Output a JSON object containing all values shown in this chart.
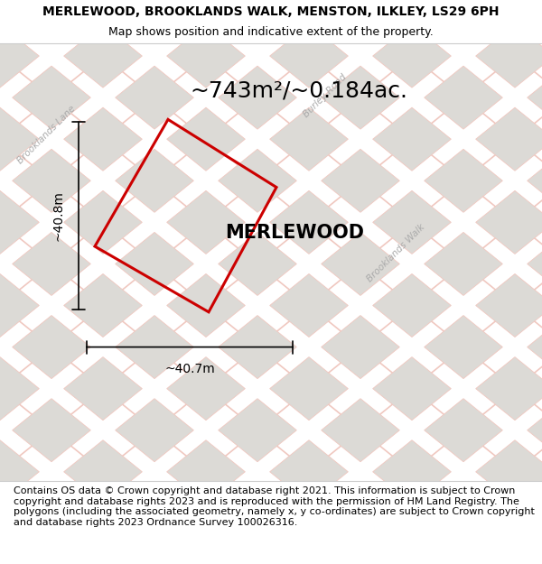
{
  "title_line1": "MERLEWOOD, BROOKLANDS WALK, MENSTON, ILKLEY, LS29 6PH",
  "title_line2": "Map shows position and indicative extent of the property.",
  "area_label": "~743m²/~0.184ac.",
  "property_name": "MERLEWOOD",
  "dim_width": "~40.7m",
  "dim_height": "~40.8m",
  "footer": "Contains OS data © Crown copyright and database right 2021. This information is subject to Crown copyright and database rights 2023 and is reproduced with the permission of HM Land Registry. The polygons (including the associated geometry, namely x, y co-ordinates) are subject to Crown copyright and database rights 2023 Ordnance Survey 100026316.",
  "bg_color": "#f8f6f3",
  "road_color": "#f0c8c0",
  "plot_outline_color": "#cc0000",
  "building_fill": "#dcdad6",
  "building_edge": "#c8c0b8",
  "street_label_color": "#aaaaaa",
  "title_fontsize": 10,
  "area_fontsize": 18,
  "property_fontsize": 15,
  "footer_fontsize": 8.0,
  "title_bold": true,
  "subtitle_fontsize": 9
}
